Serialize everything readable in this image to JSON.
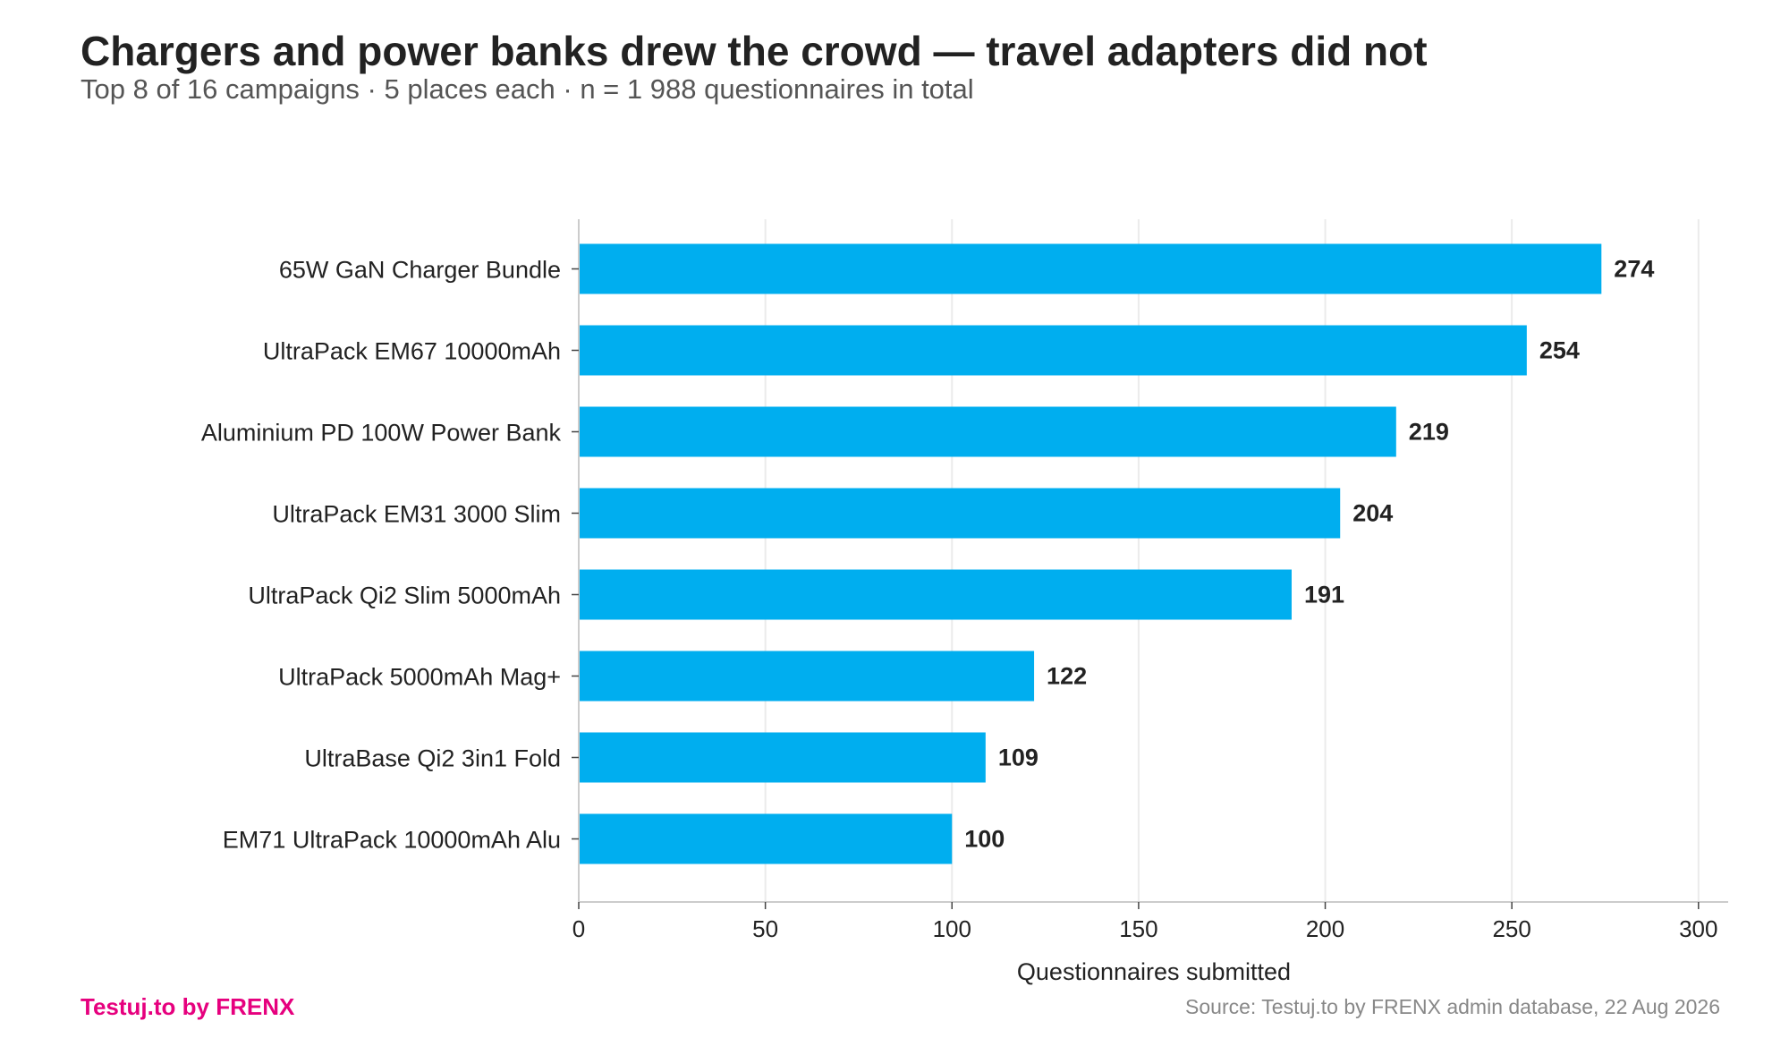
{
  "header": {
    "title": "Chargers and power banks drew the crowd — travel adapters did not",
    "subtitle": "Top 8 of 16 campaigns · 5 places each · n = 1 988 questionnaires in total"
  },
  "footer": {
    "brand": "Testuj.to by FRENX",
    "source": "Source: Testuj.to by FRENX admin database, 22 Aug 2026"
  },
  "colors": {
    "bar": "#00AEEF",
    "brand": "#E6007E",
    "grid": "#EBEBEB",
    "axis": "#CCCCCC",
    "text": "#222222"
  },
  "chart_data": {
    "type": "bar",
    "orientation": "horizontal",
    "categories": [
      "65W GaN Charger Bundle",
      "UltraPack EM67 10000mAh",
      "Aluminium PD 100W Power Bank",
      "UltraPack EM31 3000 Slim",
      "UltraPack Qi2 Slim 5000mAh",
      "UltraPack 5000mAh Mag+",
      "UltraBase Qi2 3in1 Fold",
      "EM71 UltraPack 10000mAh Alu"
    ],
    "values": [
      274,
      254,
      219,
      204,
      191,
      122,
      109,
      100
    ],
    "data_labels": [
      "274",
      "254",
      "219",
      "204",
      "191",
      "122",
      "109",
      "100"
    ],
    "xlabel": "Questionnaires submitted",
    "ylabel": "",
    "xlim": [
      0,
      307
    ],
    "xticks": [
      0,
      50,
      100,
      150,
      200,
      250,
      300
    ],
    "xtick_labels": [
      "0",
      "50",
      "100",
      "150",
      "200",
      "250",
      "300"
    ],
    "grid": "vertical",
    "legend": "none"
  }
}
